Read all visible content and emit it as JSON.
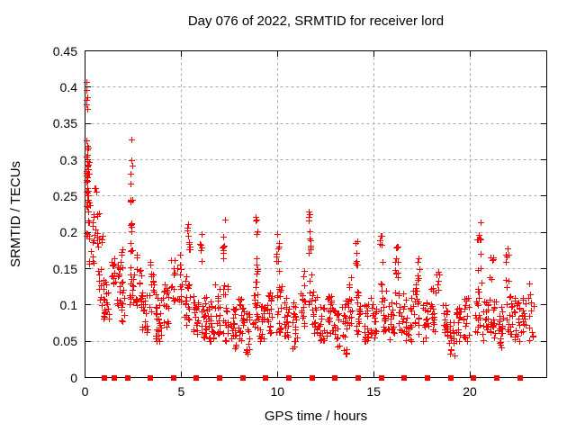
{
  "chart_data": {
    "type": "scatter",
    "title": "Day 076 of 2022, SRMTID for receiver lord",
    "xlabel": "GPS time / hours",
    "ylabel": "SRMTID / TECUs",
    "xlim": [
      0,
      24
    ],
    "ylim": [
      0,
      0.45
    ],
    "xtick_values": [
      0,
      5,
      10,
      15,
      20
    ],
    "xtick_labels": [
      "0",
      "5",
      "10",
      "15",
      "20"
    ],
    "ytick_values": [
      0,
      0.05,
      0.1,
      0.15,
      0.2,
      0.25,
      0.3,
      0.35,
      0.4,
      0.45
    ],
    "ytick_labels": [
      "0",
      "0.05",
      "0.1",
      "0.15",
      "0.2",
      "0.25",
      "0.3",
      "0.35",
      "0.4",
      "0.45"
    ],
    "grid": true,
    "legend": "none",
    "marker": "plus",
    "zero_line_marker": "filled-square",
    "colors": {
      "marker": "#ff0000",
      "grid": "#a8a8a8",
      "frame": "#000000",
      "background": "#ffffff",
      "text": "#000000"
    },
    "seed": 76,
    "clusters_format": "[hour_center, hour_width, value_min, value_max, n_points, low_bias_exponent] - estimated dense point clusters read from the plot",
    "clusters": [
      [
        0.08,
        0.1,
        0.36,
        0.41,
        6,
        1
      ],
      [
        0.1,
        0.1,
        0.29,
        0.335,
        7,
        1
      ],
      [
        0.12,
        0.15,
        0.235,
        0.3,
        22,
        1
      ],
      [
        0.18,
        0.2,
        0.19,
        0.245,
        14,
        1
      ],
      [
        0.35,
        0.25,
        0.15,
        0.19,
        8,
        1
      ],
      [
        0.45,
        0.2,
        0.195,
        0.225,
        6,
        1
      ],
      [
        0.55,
        0.15,
        0.25,
        0.27,
        3,
        1
      ],
      [
        0.75,
        0.3,
        0.18,
        0.23,
        12,
        1
      ],
      [
        0.8,
        0.3,
        0.1,
        0.15,
        10,
        1
      ],
      [
        1.1,
        0.3,
        0.08,
        0.14,
        22,
        1.3
      ],
      [
        1.45,
        0.2,
        0.115,
        0.165,
        12,
        1
      ],
      [
        1.7,
        0.25,
        0.1,
        0.155,
        14,
        1
      ],
      [
        1.95,
        0.2,
        0.075,
        0.135,
        12,
        1
      ],
      [
        1.9,
        0.15,
        0.15,
        0.185,
        5,
        1
      ],
      [
        2.4,
        0.12,
        0.24,
        0.33,
        9,
        1
      ],
      [
        2.4,
        0.15,
        0.165,
        0.215,
        9,
        1
      ],
      [
        2.45,
        0.3,
        0.1,
        0.155,
        16,
        1
      ],
      [
        2.8,
        0.3,
        0.095,
        0.175,
        20,
        1.2
      ],
      [
        3.1,
        0.3,
        0.06,
        0.12,
        18,
        1.2
      ],
      [
        3.45,
        0.25,
        0.09,
        0.16,
        14,
        1
      ],
      [
        3.8,
        0.3,
        0.05,
        0.115,
        26,
        1.3
      ],
      [
        4.2,
        0.3,
        0.07,
        0.13,
        20,
        1.2
      ],
      [
        4.55,
        0.25,
        0.1,
        0.165,
        12,
        1
      ],
      [
        4.9,
        0.25,
        0.1,
        0.175,
        12,
        1
      ],
      [
        5.35,
        0.1,
        0.185,
        0.215,
        4,
        1
      ],
      [
        5.3,
        0.3,
        0.07,
        0.14,
        20,
        1.2
      ],
      [
        5.45,
        0.1,
        0.17,
        0.2,
        5,
        1
      ],
      [
        5.75,
        0.3,
        0.06,
        0.12,
        22,
        1.3
      ],
      [
        6.0,
        0.1,
        0.16,
        0.205,
        6,
        1
      ],
      [
        6.2,
        0.3,
        0.055,
        0.115,
        22,
        1.3
      ],
      [
        6.55,
        0.3,
        0.05,
        0.11,
        22,
        1.3
      ],
      [
        6.9,
        0.25,
        0.06,
        0.13,
        18,
        1.2
      ],
      [
        7.2,
        0.12,
        0.15,
        0.22,
        8,
        1
      ],
      [
        7.3,
        0.3,
        0.05,
        0.13,
        20,
        1.2
      ],
      [
        7.7,
        0.3,
        0.04,
        0.1,
        22,
        1.3
      ],
      [
        8.1,
        0.3,
        0.05,
        0.11,
        20,
        1.2
      ],
      [
        8.45,
        0.25,
        0.025,
        0.09,
        16,
        1.2
      ],
      [
        8.9,
        0.15,
        0.13,
        0.235,
        12,
        1
      ],
      [
        8.85,
        0.3,
        0.06,
        0.125,
        18,
        1.2
      ],
      [
        9.2,
        0.3,
        0.05,
        0.1,
        18,
        1.3
      ],
      [
        9.6,
        0.3,
        0.06,
        0.12,
        20,
        1.2
      ],
      [
        10.0,
        0.15,
        0.14,
        0.2,
        9,
        1
      ],
      [
        10.1,
        0.3,
        0.06,
        0.13,
        20,
        1.2
      ],
      [
        10.5,
        0.3,
        0.05,
        0.11,
        20,
        1.2
      ],
      [
        10.9,
        0.3,
        0.035,
        0.12,
        18,
        1.2
      ],
      [
        11.3,
        0.25,
        0.07,
        0.15,
        16,
        1
      ],
      [
        11.65,
        0.12,
        0.2,
        0.246,
        5,
        1
      ],
      [
        11.7,
        0.2,
        0.1,
        0.195,
        12,
        1
      ],
      [
        11.95,
        0.3,
        0.06,
        0.12,
        18,
        1.2
      ],
      [
        12.3,
        0.3,
        0.05,
        0.105,
        20,
        1.3
      ],
      [
        12.7,
        0.3,
        0.055,
        0.115,
        20,
        1.2
      ],
      [
        13.05,
        0.3,
        0.04,
        0.095,
        18,
        1.2
      ],
      [
        13.5,
        0.3,
        0.03,
        0.115,
        20,
        1.2
      ],
      [
        13.75,
        0.25,
        0.07,
        0.145,
        16,
        1
      ],
      [
        14.1,
        0.15,
        0.145,
        0.195,
        7,
        1
      ],
      [
        14.2,
        0.3,
        0.06,
        0.125,
        18,
        1.2
      ],
      [
        14.6,
        0.3,
        0.05,
        0.105,
        20,
        1.3
      ],
      [
        15.0,
        0.3,
        0.055,
        0.11,
        20,
        1.2
      ],
      [
        15.4,
        0.15,
        0.12,
        0.205,
        8,
        1
      ],
      [
        15.5,
        0.3,
        0.06,
        0.12,
        18,
        1.2
      ],
      [
        15.9,
        0.3,
        0.05,
        0.105,
        18,
        1.3
      ],
      [
        16.15,
        0.25,
        0.1,
        0.18,
        14,
        1
      ],
      [
        16.45,
        0.3,
        0.06,
        0.12,
        16,
        1.2
      ],
      [
        16.8,
        0.3,
        0.05,
        0.11,
        18,
        1.2
      ],
      [
        17.2,
        0.3,
        0.06,
        0.13,
        18,
        1.2
      ],
      [
        17.35,
        0.15,
        0.13,
        0.165,
        6,
        1
      ],
      [
        17.7,
        0.3,
        0.05,
        0.11,
        18,
        1.3
      ],
      [
        18.1,
        0.3,
        0.06,
        0.125,
        18,
        1.2
      ],
      [
        18.35,
        0.15,
        0.12,
        0.15,
        6,
        1
      ],
      [
        18.7,
        0.3,
        0.05,
        0.105,
        18,
        1.2
      ],
      [
        19.05,
        0.3,
        0.03,
        0.085,
        16,
        1.2
      ],
      [
        19.4,
        0.3,
        0.05,
        0.1,
        18,
        1.2
      ],
      [
        19.8,
        0.3,
        0.05,
        0.11,
        18,
        1.2
      ],
      [
        20.5,
        0.25,
        0.13,
        0.22,
        12,
        1
      ],
      [
        20.4,
        0.3,
        0.06,
        0.125,
        16,
        1.2
      ],
      [
        20.8,
        0.3,
        0.05,
        0.11,
        18,
        1.2
      ],
      [
        21.15,
        0.2,
        0.13,
        0.17,
        6,
        1
      ],
      [
        21.2,
        0.3,
        0.055,
        0.115,
        18,
        1.2
      ],
      [
        21.6,
        0.3,
        0.04,
        0.1,
        20,
        1.3
      ],
      [
        21.95,
        0.15,
        0.12,
        0.185,
        8,
        1
      ],
      [
        22.05,
        0.3,
        0.055,
        0.115,
        18,
        1.2
      ],
      [
        22.45,
        0.3,
        0.05,
        0.11,
        18,
        1.2
      ],
      [
        22.8,
        0.25,
        0.06,
        0.135,
        16,
        1
      ],
      [
        23.2,
        0.3,
        0.05,
        0.13,
        12,
        1.2
      ]
    ],
    "zero_marker_hours": [
      1.0,
      1.5,
      2.2,
      3.4,
      4.6,
      5.8,
      7.0,
      8.2,
      9.4,
      10.6,
      11.8,
      13.0,
      14.2,
      15.4,
      16.6,
      17.8,
      19.0,
      20.2,
      21.4,
      22.6
    ]
  }
}
